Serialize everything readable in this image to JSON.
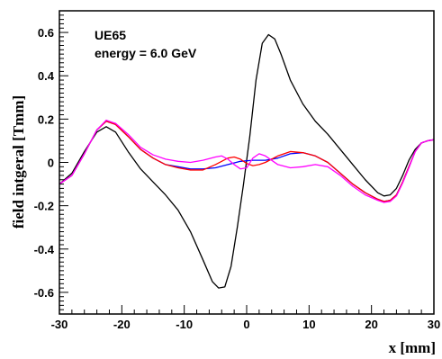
{
  "chart_data": {
    "type": "line",
    "title": "",
    "xlabel": "x [mm]",
    "ylabel": "field intgeral [Tmm]",
    "xlim": [
      -30,
      30
    ],
    "ylim": [
      -0.7,
      0.7
    ],
    "x_ticks": [
      -30,
      -20,
      -10,
      0,
      10,
      20,
      30
    ],
    "y_ticks": [
      -0.6,
      -0.4,
      -0.2,
      0,
      0.2,
      0.4,
      0.6
    ],
    "x_tick_labels": [
      "-30",
      "-20",
      "-10",
      "0",
      "10",
      "20",
      "30"
    ],
    "y_tick_labels": [
      "-0.6",
      "-0.4",
      "-0.2",
      "0",
      "0.2",
      "0.4",
      "0.6"
    ],
    "grid": false,
    "annotations": [
      "UE65",
      "energy = 6.0 GeV"
    ],
    "series": [
      {
        "color": "#000000",
        "x": [
          -30,
          -28,
          -26,
          -24,
          -22.5,
          -21,
          -19,
          -17,
          -15,
          -13,
          -11,
          -9,
          -7,
          -5.5,
          -4.5,
          -3.5,
          -2.5,
          -1.5,
          -0.5,
          0.5,
          1.5,
          2.5,
          3.5,
          4.5,
          5.5,
          7,
          9,
          11,
          13,
          15,
          17,
          19,
          21,
          22,
          23,
          24,
          25,
          26,
          27,
          28,
          29,
          30
        ],
        "y": [
          -0.1,
          -0.05,
          0.05,
          0.14,
          0.165,
          0.14,
          0.05,
          -0.03,
          -0.09,
          -0.15,
          -0.22,
          -0.32,
          -0.45,
          -0.55,
          -0.58,
          -0.575,
          -0.48,
          -0.3,
          -0.1,
          0.12,
          0.38,
          0.55,
          0.59,
          0.57,
          0.5,
          0.38,
          0.27,
          0.19,
          0.13,
          0.06,
          -0.01,
          -0.08,
          -0.14,
          -0.155,
          -0.15,
          -0.12,
          -0.06,
          0.01,
          0.06,
          0.09,
          0.1,
          0.105
        ]
      },
      {
        "color": "#0000ff",
        "x": [
          -30,
          -28,
          -26,
          -24,
          -22.5,
          -21,
          -19,
          -17,
          -15,
          -13,
          -11,
          -9,
          -7,
          -5,
          -3,
          -1,
          1,
          3,
          5,
          7,
          9,
          11,
          13,
          15,
          17,
          19,
          21,
          22,
          23,
          24,
          25,
          26,
          27,
          28,
          29,
          30
        ],
        "y": [
          -0.1,
          -0.06,
          0.04,
          0.15,
          0.19,
          0.175,
          0.12,
          0.06,
          0.02,
          -0.01,
          -0.02,
          -0.03,
          -0.03,
          -0.025,
          -0.01,
          0.005,
          0.01,
          0.01,
          0.02,
          0.04,
          0.045,
          0.03,
          0.0,
          -0.05,
          -0.1,
          -0.14,
          -0.17,
          -0.18,
          -0.175,
          -0.15,
          -0.09,
          -0.02,
          0.05,
          0.09,
          0.1,
          0.105
        ]
      },
      {
        "color": "#ff0000",
        "x": [
          -30,
          -28,
          -26,
          -24,
          -22.5,
          -21,
          -19,
          -17,
          -15,
          -13,
          -11,
          -9,
          -7,
          -5,
          -3,
          -2,
          -1,
          0,
          1,
          2,
          3,
          5,
          7,
          9,
          11,
          13,
          15,
          17,
          19,
          21,
          22,
          23,
          24,
          25,
          26,
          27,
          28,
          29,
          30
        ],
        "y": [
          -0.1,
          -0.06,
          0.04,
          0.15,
          0.19,
          0.175,
          0.12,
          0.06,
          0.02,
          -0.01,
          -0.025,
          -0.035,
          -0.035,
          -0.01,
          0.02,
          0.025,
          0.015,
          -0.005,
          -0.015,
          -0.01,
          0.0,
          0.03,
          0.05,
          0.045,
          0.03,
          0.0,
          -0.05,
          -0.1,
          -0.14,
          -0.17,
          -0.18,
          -0.175,
          -0.15,
          -0.09,
          -0.02,
          0.05,
          0.09,
          0.1,
          0.105
        ]
      },
      {
        "color": "#ff00ff",
        "x": [
          -30,
          -28,
          -26,
          -24,
          -22.5,
          -21,
          -19,
          -17,
          -15,
          -13,
          -11,
          -9,
          -7,
          -5,
          -4,
          -3,
          -2,
          -1,
          0,
          1,
          2,
          3,
          5,
          7,
          9,
          11,
          13,
          15,
          17,
          19,
          21,
          22,
          23,
          24,
          25,
          26,
          27,
          28,
          29,
          30
        ],
        "y": [
          -0.1,
          -0.06,
          0.04,
          0.15,
          0.195,
          0.18,
          0.13,
          0.07,
          0.035,
          0.015,
          0.005,
          0.0,
          0.01,
          0.025,
          0.03,
          0.015,
          -0.01,
          -0.03,
          -0.025,
          0.02,
          0.04,
          0.03,
          -0.01,
          -0.025,
          -0.02,
          -0.01,
          -0.02,
          -0.06,
          -0.11,
          -0.15,
          -0.175,
          -0.185,
          -0.18,
          -0.155,
          -0.095,
          -0.025,
          0.05,
          0.09,
          0.1,
          0.105
        ]
      }
    ]
  }
}
